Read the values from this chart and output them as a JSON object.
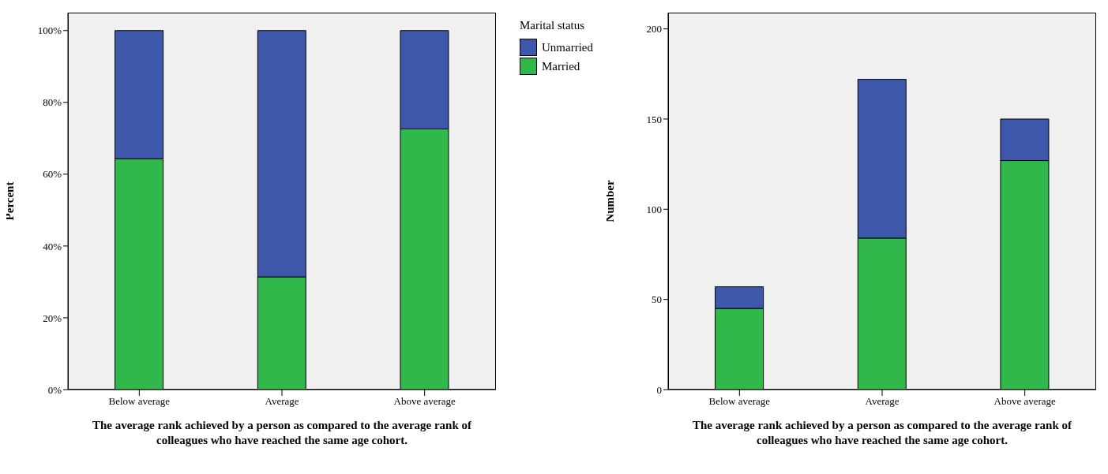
{
  "chart_data": [
    {
      "type": "bar",
      "stacked": true,
      "ylabel": "Percent",
      "xlabel": "The average rank achieved by a person as compared to the average rank of colleagues who have reached the same age cohort.",
      "legend_title": "Marital status",
      "legend": "top right",
      "categories": [
        "Below average",
        "Average",
        "Above average"
      ],
      "series": [
        {
          "name": "Married",
          "color": "#30b84a",
          "values": [
            64.3,
            31.4,
            72.6
          ]
        },
        {
          "name": "Unmarried",
          "color": "#3d58aa",
          "values": [
            35.7,
            68.6,
            27.4
          ]
        }
      ],
      "ylim": [
        0,
        105
      ],
      "yticks": [
        {
          "value": 0,
          "label": "0%"
        },
        {
          "value": 20,
          "label": "20%"
        },
        {
          "value": 40,
          "label": "40%"
        },
        {
          "value": 60,
          "label": "60%"
        },
        {
          "value": 80,
          "label": "80%"
        },
        {
          "value": 100,
          "label": "100%"
        }
      ],
      "grid": false
    },
    {
      "type": "bar",
      "stacked": true,
      "ylabel": "Number",
      "xlabel": "The average rank achieved by a person as compared to the average rank of colleagues who have reached the same age cohort.",
      "categories": [
        "Below average",
        "Average",
        "Above average"
      ],
      "series": [
        {
          "color": "#30b84a",
          "values": [
            45,
            84,
            127
          ]
        },
        {
          "color": "#3d58aa",
          "values": [
            12,
            88,
            23
          ]
        }
      ],
      "ylim": [
        0,
        209
      ],
      "yticks": [
        0,
        50,
        100,
        150,
        200
      ],
      "grid": false
    }
  ]
}
